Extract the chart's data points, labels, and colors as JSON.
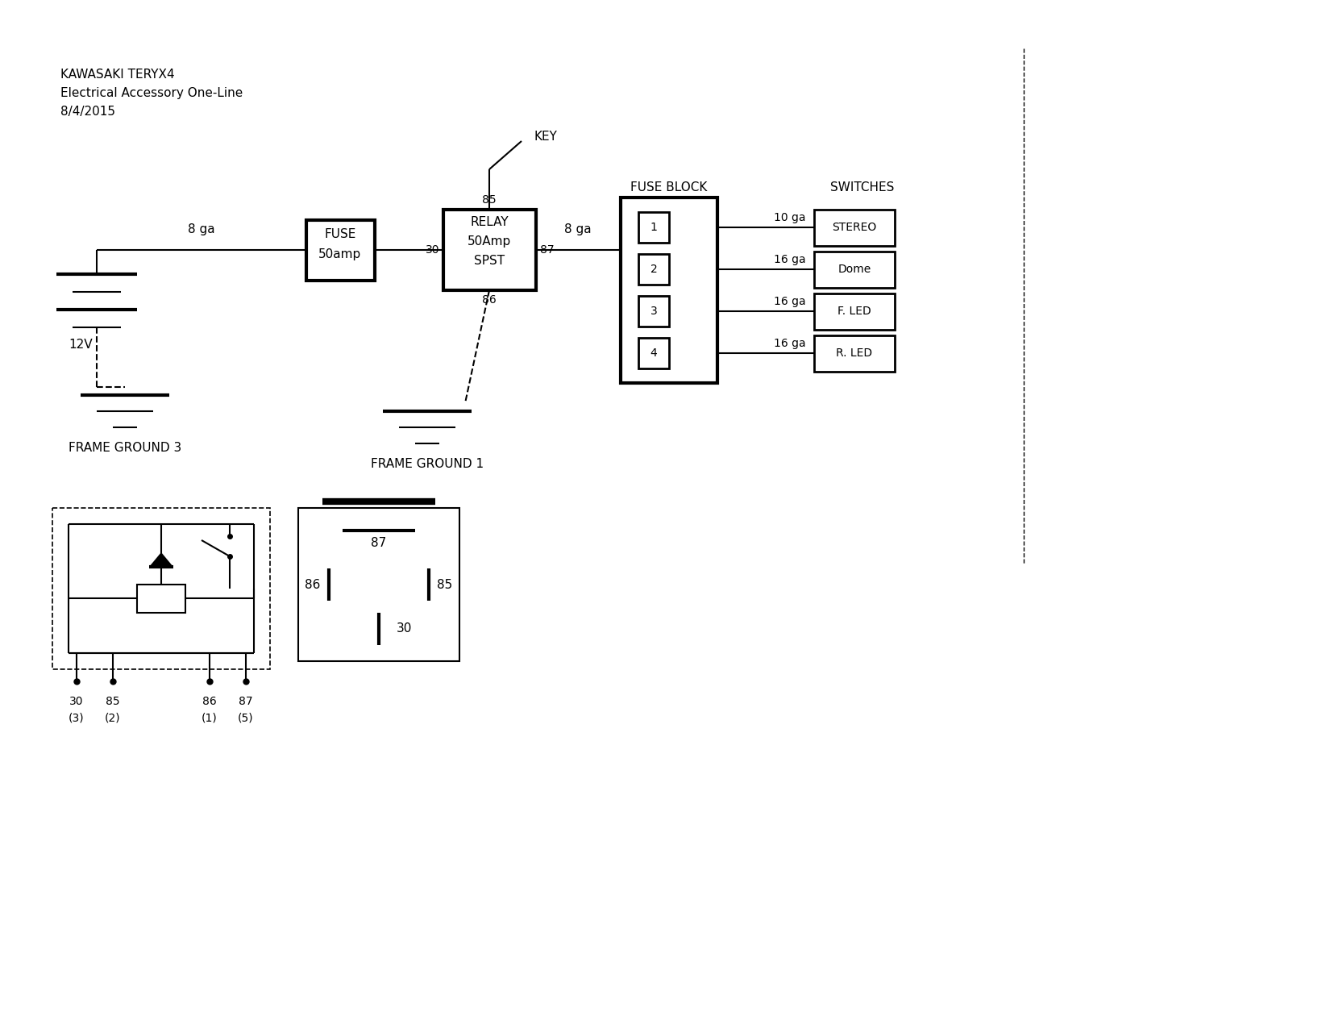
{
  "title_line1": "KAWASAKI TERYX4",
  "title_line2": "Electrical Accessory One-Line",
  "title_line3": "8/4/2015",
  "bg_color": "#ffffff",
  "line_color": "#000000",
  "components": {
    "battery_label": "12V",
    "fuse_label1": "FUSE",
    "fuse_label2": "50amp",
    "relay_label1": "RELAY",
    "relay_label2": "50Amp",
    "relay_label3": "SPST",
    "fuse_block_label": "FUSE BLOCK",
    "switches_label": "SWITCHES",
    "key_label": "KEY",
    "frame_ground3": "FRAME GROUND 3",
    "frame_ground1": "FRAME GROUND 1",
    "wire_8ga_1": "8 ga",
    "wire_8ga_2": "8 ga",
    "wire_10ga": "10 ga",
    "wire_16ga_1": "16 ga",
    "wire_16ga_2": "16 ga",
    "wire_16ga_3": "16 ga",
    "relay_pin_85": "85",
    "relay_pin_30": "30",
    "relay_pin_87": "87",
    "relay_pin_86": "86",
    "switch_stereo": "STEREO",
    "switch_dome": "Dome",
    "switch_fled": "F. LED",
    "switch_rled": "R. LED",
    "fuse1": "1",
    "fuse2": "2",
    "fuse3": "3",
    "fuse4": "4"
  }
}
